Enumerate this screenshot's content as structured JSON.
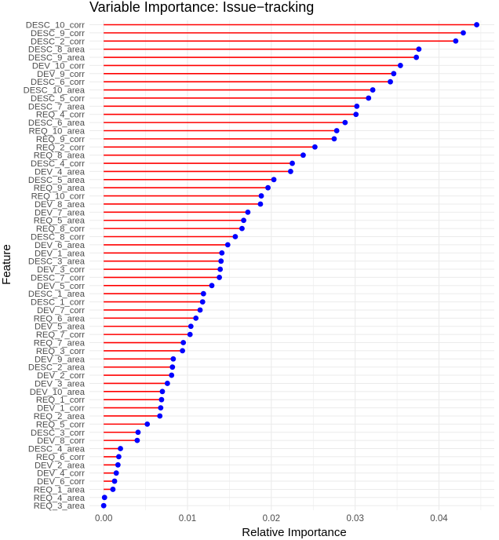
{
  "chart_data": {
    "type": "lollipop",
    "title": "Variable Importance: Issue−tracking",
    "xlabel": "Relative Importance",
    "ylabel": "Feature",
    "xlim": [
      -0.0017,
      0.0466
    ],
    "x_ticks": [
      "0.00",
      "0.01",
      "0.02",
      "0.03",
      "0.04"
    ],
    "x_tick_values": [
      0,
      0.01,
      0.02,
      0.03,
      0.04
    ],
    "grid": true,
    "colors": {
      "stem": "#ff0000",
      "point": "#0000ff",
      "grid": "#ebebeb",
      "background": "#ffffff"
    },
    "categories": [
      "DESC_10_corr",
      "DESC_9_corr",
      "DESC_2_corr",
      "DESC_8_area",
      "DESC_9_area",
      "DEV_10_corr",
      "DEV_9_corr",
      "DESC_6_corr",
      "DESC_10_area",
      "DESC_5_corr",
      "DESC_7_area",
      "REQ_4_corr",
      "DESC_6_area",
      "REQ_10_area",
      "REQ_9_corr",
      "REQ_2_corr",
      "REQ_8_area",
      "DESC_4_corr",
      "DEV_4_area",
      "DESC_5_area",
      "REQ_9_area",
      "REQ_10_corr",
      "DEV_8_area",
      "DEV_7_area",
      "REQ_5_area",
      "REQ_8_corr",
      "DESC_8_corr",
      "DEV_6_area",
      "DEV_1_area",
      "DESC_3_area",
      "DEV_3_corr",
      "DESC_7_corr",
      "DEV_5_corr",
      "DESC_1_area",
      "DESC_1_corr",
      "DEV_7_corr",
      "REQ_6_area",
      "DEV_5_area",
      "REQ_7_corr",
      "REQ_7_area",
      "REQ_3_corr",
      "DEV_9_area",
      "DESC_2_area",
      "DEV_2_corr",
      "DEV_3_area",
      "DEV_10_area",
      "REQ_1_corr",
      "DEV_1_corr",
      "REQ_2_area",
      "REQ_5_corr",
      "DESC_3_corr",
      "DEV_8_corr",
      "DESC_4_area",
      "REQ_6_corr",
      "DEV_2_area",
      "DEV_4_corr",
      "DEV_6_corr",
      "REQ_1_area",
      "REQ_4_area",
      "REQ_3_area"
    ],
    "values": [
      0.0445,
      0.0429,
      0.042,
      0.0376,
      0.0373,
      0.0354,
      0.0346,
      0.0342,
      0.0321,
      0.0316,
      0.0302,
      0.0301,
      0.0288,
      0.0278,
      0.0275,
      0.0252,
      0.0238,
      0.0225,
      0.0223,
      0.0203,
      0.0196,
      0.0188,
      0.0187,
      0.0172,
      0.0167,
      0.0165,
      0.0157,
      0.0148,
      0.0141,
      0.014,
      0.0139,
      0.0138,
      0.0129,
      0.0119,
      0.0118,
      0.0115,
      0.011,
      0.0104,
      0.0103,
      0.0095,
      0.0094,
      0.0083,
      0.0082,
      0.0081,
      0.0076,
      0.007,
      0.0069,
      0.0068,
      0.0067,
      0.0052,
      0.0041,
      0.004,
      0.002,
      0.0018,
      0.0017,
      0.0015,
      0.0013,
      0.0011,
      0.0001,
      0.0
    ]
  }
}
